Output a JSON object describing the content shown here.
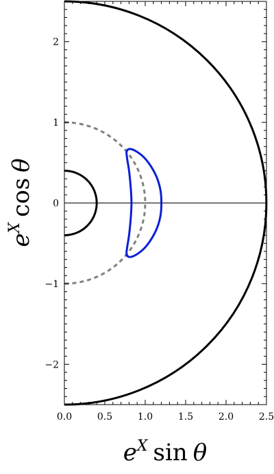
{
  "chart_data": {
    "type": "line",
    "title": "",
    "xlabel": "e^X sin θ",
    "ylabel": "e^X cos θ",
    "xlabel_parts": {
      "base": "e",
      "sup": "X",
      "fn": "sin",
      "var": "θ"
    },
    "ylabel_parts": {
      "base": "e",
      "sup": "X",
      "fn": "cos",
      "var": "θ"
    },
    "xlim": [
      0,
      2.5
    ],
    "ylim": [
      -2.5,
      2.5
    ],
    "grid": false,
    "xticks": [
      0,
      0.5,
      1,
      1.5,
      2,
      2.5
    ],
    "xtick_labels": [
      "0.0",
      "0.5",
      "1.0",
      "1.5",
      "2.0",
      "2.5"
    ],
    "yticks": [
      -2,
      -1,
      0,
      1,
      2
    ],
    "ytick_labels": [
      "−2",
      "−1",
      "0",
      "1",
      "2"
    ],
    "series": [
      {
        "kind": "semicircle",
        "radius": 2.5,
        "color": "#000000",
        "style": "solid"
      },
      {
        "kind": "semicircle",
        "radius": 0.4,
        "color": "#000000",
        "style": "solid"
      },
      {
        "kind": "semicircle",
        "radius": 1.0,
        "color": "#808080",
        "style": "dashed"
      },
      {
        "kind": "closed-curve",
        "color": "#0a1fd6",
        "style": "solid",
        "points": [
          [
            1.2,
            0.0
          ],
          [
            1.19,
            0.15
          ],
          [
            1.15,
            0.3
          ],
          [
            1.08,
            0.44
          ],
          [
            0.99,
            0.56
          ],
          [
            0.89,
            0.64
          ],
          [
            0.81,
            0.67
          ],
          [
            0.77,
            0.64
          ],
          [
            0.775,
            0.56
          ],
          [
            0.8,
            0.4
          ],
          [
            0.82,
            0.2
          ],
          [
            0.83,
            0.0
          ],
          [
            0.82,
            -0.2
          ],
          [
            0.8,
            -0.4
          ],
          [
            0.775,
            -0.56
          ],
          [
            0.77,
            -0.64
          ],
          [
            0.81,
            -0.67
          ],
          [
            0.89,
            -0.64
          ],
          [
            0.99,
            -0.56
          ],
          [
            1.08,
            -0.44
          ],
          [
            1.15,
            -0.3
          ],
          [
            1.19,
            -0.15
          ],
          [
            1.2,
            0.0
          ]
        ]
      }
    ],
    "reference_lines": [
      {
        "axis": "y",
        "value": 0,
        "color": "#000000"
      }
    ]
  }
}
